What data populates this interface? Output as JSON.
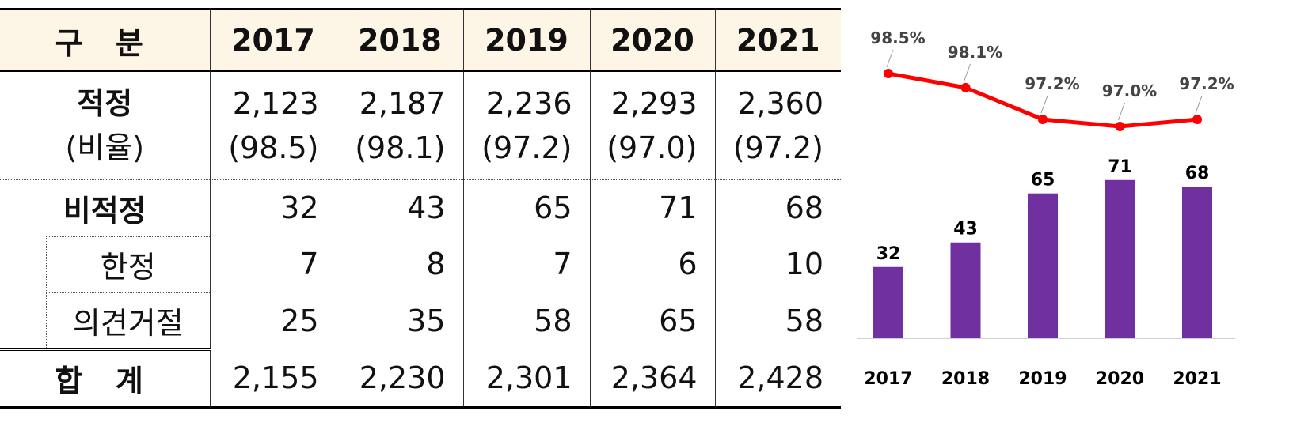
{
  "table": {
    "header": [
      "구 분",
      "2017",
      "2018",
      "2019",
      "2020",
      "2021"
    ],
    "rows": [
      [
        [
          "적정",
          "(비율)"
        ],
        [
          "2,123",
          "(98.5)"
        ],
        [
          "2,187",
          "(98.1)"
        ],
        [
          "2,236",
          "(97.2)"
        ],
        [
          "2,293",
          "(97.0)"
        ],
        [
          "2,360",
          "(97.2)"
        ]
      ],
      [
        "비적정",
        "32",
        "43",
        "65",
        "71",
        "68"
      ],
      [
        "한정",
        "7",
        "8",
        "7",
        "6",
        "10"
      ],
      [
        "의견거절",
        "25",
        "35",
        "58",
        "65",
        "58"
      ],
      [
        "합 계",
        "2,155",
        "2,230",
        "2,301",
        "2,364",
        "2,428"
      ]
    ]
  },
  "chart_data": {
    "type": "bar+line",
    "categories": [
      "2017",
      "2018",
      "2019",
      "2020",
      "2021"
    ],
    "series": [
      {
        "type": "bar",
        "color": "#7030a0",
        "values": [
          32,
          43,
          65,
          71,
          68
        ]
      },
      {
        "type": "line",
        "color": "#ff0000",
        "values": [
          98.5,
          98.1,
          97.2,
          97.0,
          97.2
        ],
        "value_labels": [
          "98.5%",
          "98.1%",
          "97.2%",
          "97.0%",
          "97.2%"
        ]
      }
    ]
  }
}
